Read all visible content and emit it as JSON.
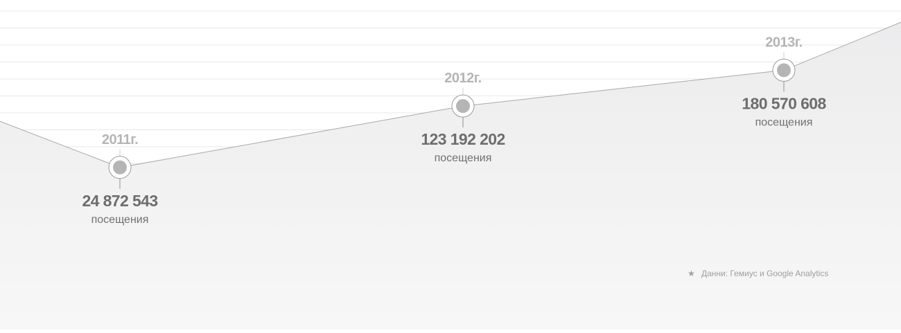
{
  "chart_data": {
    "type": "area",
    "x": [
      "2011г.",
      "2012г.",
      "2013г."
    ],
    "series": [
      {
        "values": [
          24872543,
          123192202,
          180570608
        ]
      }
    ],
    "data_labels": [
      "24 872 543",
      "123 192 202",
      "180 570 608"
    ],
    "unit": "посещения",
    "grid": true,
    "colors": {
      "area_top": "#ececed",
      "area_bottom": "#f7f7f7",
      "line": "#a8a8a8",
      "marker": "#b5b5b5",
      "gridline": "#e8e8e8"
    }
  },
  "footnote": {
    "star": "★",
    "text": "Данни: Гемиус и Google Analytics"
  }
}
